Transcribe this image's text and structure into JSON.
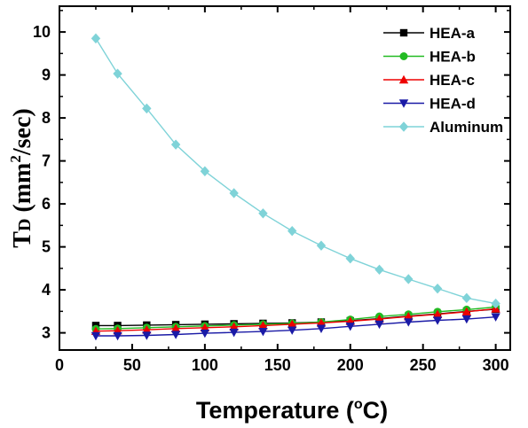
{
  "chart_data": {
    "type": "line",
    "xlabel": "Temperature (°C)",
    "xlabel_main": "Temperature (",
    "xlabel_unit": "o",
    "xlabel_unit_tail": "C)",
    "ylabel_main": "T",
    "ylabel_sub": "D",
    "ylabel_unit_a": " (mm",
    "ylabel_unit_sup": "2",
    "ylabel_unit_b": "/sec)",
    "xlim": [
      0,
      310
    ],
    "ylim": [
      2.6,
      10.6
    ],
    "xticks": [
      0,
      50,
      100,
      150,
      200,
      250,
      300
    ],
    "yticks": [
      3,
      4,
      5,
      6,
      7,
      8,
      9,
      10
    ],
    "legend_position": "top-right",
    "grid": false,
    "series": [
      {
        "name": "HEA-a",
        "color": "#000000",
        "marker": "square",
        "x": [
          25,
          40,
          60,
          80,
          100,
          120,
          140,
          160,
          180,
          200,
          220,
          240,
          260,
          280,
          300
        ],
        "values": [
          3.17,
          3.17,
          3.18,
          3.19,
          3.2,
          3.21,
          3.22,
          3.23,
          3.25,
          3.28,
          3.33,
          3.39,
          3.44,
          3.5,
          3.55
        ]
      },
      {
        "name": "HEA-b",
        "color": "#22bb22",
        "marker": "circle",
        "x": [
          25,
          40,
          60,
          80,
          100,
          120,
          140,
          160,
          180,
          200,
          220,
          240,
          260,
          280,
          300
        ],
        "values": [
          3.09,
          3.1,
          3.12,
          3.14,
          3.16,
          3.18,
          3.2,
          3.22,
          3.25,
          3.31,
          3.38,
          3.43,
          3.49,
          3.54,
          3.6
        ]
      },
      {
        "name": "HEA-c",
        "color": "#ee0000",
        "marker": "triangle-up",
        "x": [
          25,
          40,
          60,
          80,
          100,
          120,
          140,
          160,
          180,
          200,
          220,
          240,
          260,
          280,
          300
        ],
        "values": [
          3.04,
          3.05,
          3.07,
          3.1,
          3.12,
          3.14,
          3.17,
          3.2,
          3.23,
          3.27,
          3.32,
          3.38,
          3.43,
          3.49,
          3.56
        ]
      },
      {
        "name": "HEA-d",
        "color": "#1a1aa6",
        "marker": "triangle-down",
        "x": [
          25,
          40,
          60,
          80,
          100,
          120,
          140,
          160,
          180,
          200,
          220,
          240,
          260,
          280,
          300
        ],
        "values": [
          2.93,
          2.93,
          2.94,
          2.96,
          2.99,
          3.01,
          3.03,
          3.06,
          3.1,
          3.15,
          3.2,
          3.25,
          3.29,
          3.32,
          3.37
        ]
      },
      {
        "name": "Aluminum",
        "color": "#7fd3d8",
        "marker": "diamond",
        "x": [
          25,
          40,
          60,
          80,
          100,
          120,
          140,
          160,
          180,
          200,
          220,
          240,
          260,
          280,
          300
        ],
        "values": [
          9.85,
          9.03,
          8.22,
          7.38,
          6.76,
          6.25,
          5.78,
          5.37,
          5.03,
          4.73,
          4.47,
          4.25,
          4.03,
          3.81,
          3.68
        ]
      }
    ]
  }
}
